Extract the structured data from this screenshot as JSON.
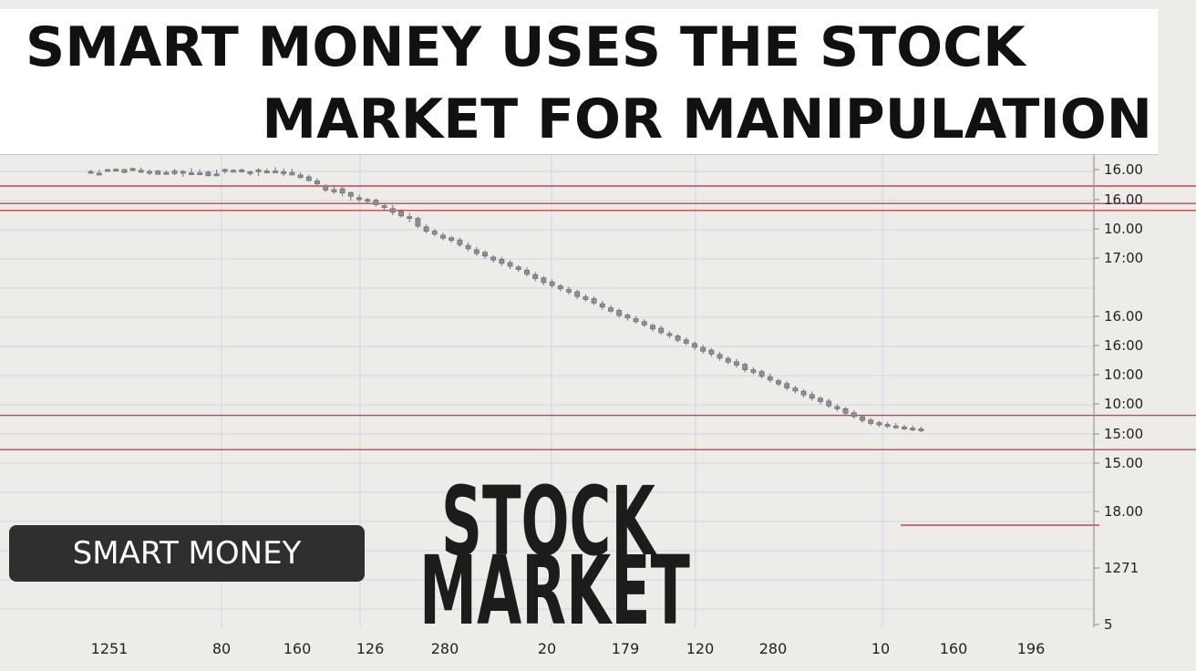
{
  "headline": {
    "line1": "SMART MONEY USES THE STOCK",
    "line2": "MARKET FOR MANIPULATION"
  },
  "badge": {
    "label": "SMART MONEY"
  },
  "stamp": {
    "line1": "STOCK",
    "line2": "MARKET"
  },
  "colors": {
    "background": "#eeece9",
    "grid": "#d3d3e6",
    "candle": "#8f8f96",
    "level_line": "#c0474b",
    "badge_bg": "#2f2f2f"
  },
  "chart_data": {
    "type": "candlestick",
    "x_tick_labels": [
      "1251",
      "80",
      "160",
      "126",
      "280",
      "20",
      "179",
      "120",
      "280",
      "10",
      "160",
      "196"
    ],
    "y_tick_labels": [
      "16.00",
      "16.00",
      "10.00",
      "17:00",
      "16.00",
      "16:00",
      "10:00",
      "10:00",
      "15:00",
      "15.00",
      "18.00",
      "1271",
      "5"
    ],
    "y_range": [
      0,
      100
    ],
    "grid": true,
    "horizontal_levels": [
      93.5,
      88.7,
      86.8,
      30.6,
      21.2
    ],
    "series": [
      {
        "values": [
          [
            97.5,
            97.9,
            96.8,
            97.0
          ],
          [
            97.0,
            98.0,
            96.4,
            96.9
          ],
          [
            97.9,
            98.2,
            97.4,
            98.0
          ],
          [
            98.1,
            98.3,
            97.7,
            97.6
          ],
          [
            97.2,
            98.2,
            97.3,
            98.0
          ],
          [
            98.3,
            98.5,
            97.5,
            97.9
          ],
          [
            97.8,
            98.6,
            97.0,
            97.3
          ],
          [
            97.5,
            98.0,
            96.5,
            97.2
          ],
          [
            97.6,
            97.9,
            96.8,
            96.7
          ],
          [
            97.0,
            97.8,
            97.3,
            97.2
          ],
          [
            97.6,
            98.2,
            96.5,
            96.9
          ],
          [
            97.5,
            97.9,
            96.0,
            97.0
          ],
          [
            96.6,
            98.4,
            96.6,
            97.1
          ],
          [
            97.0,
            98.1,
            96.5,
            97.1
          ],
          [
            97.3,
            97.7,
            96.6,
            96.3
          ],
          [
            96.8,
            98.0,
            96.4,
            96.3
          ],
          [
            98.0,
            98.3,
            96.9,
            97.7
          ],
          [
            97.8,
            98.1,
            97.3,
            97.8
          ],
          [
            97.9,
            98.3,
            97.2,
            97.5
          ],
          [
            97.4,
            97.7,
            96.3,
            97.2
          ],
          [
            97.9,
            98.4,
            96.2,
            97.5
          ],
          [
            97.6,
            98.3,
            97.0,
            97.4
          ],
          [
            97.4,
            98.7,
            97.2,
            97.6
          ],
          [
            97.4,
            98.3,
            96.2,
            97.1
          ],
          [
            97.2,
            98.2,
            96.5,
            96.5
          ],
          [
            96.5,
            97.2,
            95.6,
            95.8
          ],
          [
            96.0,
            96.6,
            94.7,
            95.0
          ],
          [
            94.9,
            95.6,
            93.5,
            94.1
          ],
          [
            93.5,
            94.0,
            91.8,
            92.4
          ],
          [
            92.5,
            93.3,
            91.3,
            91.9
          ],
          [
            92.7,
            93.3,
            90.7,
            91.6
          ],
          [
            91.7,
            92.0,
            89.5,
            90.7
          ],
          [
            90.3,
            91.1,
            89.2,
            89.8
          ],
          [
            89.8,
            90.2,
            88.6,
            89.3
          ],
          [
            89.6,
            90.1,
            87.9,
            88.4
          ],
          [
            88.1,
            88.7,
            86.8,
            87.6
          ],
          [
            87.3,
            88.3,
            85.5,
            86.3
          ],
          [
            86.5,
            87.1,
            84.8,
            85.3
          ],
          [
            85.1,
            86.1,
            83.6,
            84.6
          ],
          [
            84.6,
            85.1,
            81.9,
            82.5
          ],
          [
            82.3,
            83.1,
            80.5,
            81.1
          ],
          [
            81.1,
            81.8,
            79.7,
            80.3
          ],
          [
            80.0,
            80.7,
            78.6,
            79.2
          ],
          [
            79.3,
            79.8,
            77.9,
            78.6
          ],
          [
            78.7,
            79.3,
            76.8,
            77.4
          ],
          [
            77.2,
            78.1,
            75.6,
            76.3
          ],
          [
            76.0,
            76.8,
            74.3,
            75.0
          ],
          [
            75.3,
            75.8,
            73.5,
            74.3
          ],
          [
            74.0,
            74.5,
            72.5,
            73.2
          ],
          [
            73.4,
            74.1,
            71.6,
            72.3
          ],
          [
            72.5,
            73.1,
            70.7,
            71.5
          ],
          [
            71.3,
            71.8,
            69.9,
            70.6
          ],
          [
            70.4,
            71.2,
            68.7,
            69.3
          ],
          [
            69.2,
            69.9,
            67.4,
            68.1
          ],
          [
            68.3,
            68.8,
            66.3,
            67.0
          ],
          [
            67.2,
            67.9,
            65.6,
            66.2
          ],
          [
            66.1,
            66.6,
            64.6,
            65.3
          ],
          [
            65.1,
            65.9,
            63.7,
            64.4
          ],
          [
            64.5,
            65.0,
            62.5,
            63.2
          ],
          [
            63.1,
            63.8,
            61.8,
            62.4
          ],
          [
            62.6,
            63.2,
            60.8,
            61.4
          ],
          [
            61.2,
            62.0,
            59.6,
            60.3
          ],
          [
            60.1,
            60.8,
            58.6,
            59.2
          ],
          [
            59.4,
            59.9,
            57.4,
            58.0
          ],
          [
            58.1,
            58.6,
            56.6,
            57.3
          ],
          [
            57.1,
            57.9,
            55.7,
            56.3
          ],
          [
            56.3,
            57.0,
            54.8,
            55.4
          ],
          [
            55.3,
            55.8,
            53.7,
            54.3
          ],
          [
            54.5,
            55.2,
            52.7,
            53.3
          ],
          [
            53.0,
            53.7,
            51.8,
            52.5
          ],
          [
            52.4,
            52.9,
            50.6,
            51.2
          ],
          [
            51.3,
            52.0,
            49.8,
            50.4
          ],
          [
            50.3,
            50.8,
            48.6,
            49.3
          ],
          [
            49.2,
            49.9,
            47.5,
            48.2
          ],
          [
            48.5,
            49.0,
            46.7,
            47.4
          ],
          [
            47.3,
            48.0,
            45.6,
            46.3
          ],
          [
            46.2,
            46.8,
            44.6,
            45.2
          ],
          [
            45.3,
            46.1,
            43.7,
            44.4
          ],
          [
            44.6,
            45.1,
            42.4,
            43.1
          ],
          [
            43.1,
            43.8,
            41.8,
            42.4
          ],
          [
            42.6,
            43.2,
            40.7,
            41.3
          ],
          [
            41.2,
            42.1,
            39.6,
            40.3
          ],
          [
            40.1,
            40.7,
            38.6,
            39.2
          ],
          [
            39.3,
            40.0,
            37.4,
            38.1
          ],
          [
            38.1,
            38.7,
            36.6,
            37.3
          ],
          [
            37.2,
            37.8,
            35.5,
            36.2
          ],
          [
            36.3,
            37.1,
            34.6,
            35.3
          ],
          [
            35.3,
            35.8,
            33.7,
            34.4
          ],
          [
            34.5,
            35.2,
            32.6,
            33.2
          ],
          [
            33.0,
            33.7,
            31.7,
            32.4
          ],
          [
            32.4,
            32.9,
            30.6,
            31.2
          ],
          [
            31.3,
            32.0,
            29.7,
            30.3
          ],
          [
            30.2,
            30.8,
            28.6,
            29.2
          ],
          [
            29.3,
            29.9,
            27.8,
            28.4
          ],
          [
            28.6,
            29.1,
            27.4,
            28.0
          ],
          [
            28.1,
            28.8,
            27.1,
            27.6
          ],
          [
            27.7,
            28.5,
            26.9,
            27.3
          ],
          [
            27.4,
            28.0,
            26.6,
            27.0
          ],
          [
            27.1,
            27.8,
            26.3,
            26.8
          ],
          [
            26.9,
            27.5,
            26.0,
            26.6
          ]
        ]
      }
    ]
  }
}
